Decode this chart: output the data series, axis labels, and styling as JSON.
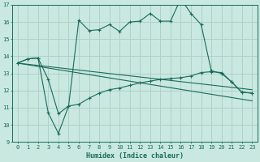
{
  "xlabel": "Humidex (Indice chaleur)",
  "xlim": [
    -0.5,
    23.5
  ],
  "ylim": [
    9,
    17
  ],
  "yticks": [
    9,
    10,
    11,
    12,
    13,
    14,
    15,
    16,
    17
  ],
  "xticks": [
    0,
    1,
    2,
    3,
    4,
    5,
    6,
    7,
    8,
    9,
    10,
    11,
    12,
    13,
    14,
    15,
    16,
    17,
    18,
    19,
    20,
    21,
    22,
    23
  ],
  "bg_color": "#c8e8e0",
  "grid_color": "#b0d0c8",
  "line_color": "#1a6b5a",
  "lines": [
    {
      "x": [
        0,
        1,
        2,
        3,
        4,
        5,
        6,
        7,
        8,
        9,
        10,
        11,
        12,
        13,
        14,
        15,
        16,
        17,
        18,
        19,
        20,
        21,
        22,
        23
      ],
      "y": [
        13.6,
        13.85,
        13.9,
        12.65,
        10.65,
        11.1,
        16.1,
        15.5,
        15.55,
        15.85,
        15.45,
        16.0,
        16.05,
        16.5,
        16.05,
        16.05,
        17.35,
        16.5,
        15.85,
        13.15,
        13.0,
        12.5,
        11.9,
        11.85
      ],
      "marker": true
    },
    {
      "x": [
        0,
        1,
        2,
        3,
        4,
        5,
        6,
        7,
        8,
        9,
        10,
        11,
        12,
        13,
        14,
        15,
        16,
        17,
        18,
        19,
        20,
        21,
        22,
        23
      ],
      "y": [
        13.6,
        13.85,
        13.9,
        10.7,
        9.5,
        11.1,
        11.2,
        11.55,
        11.85,
        12.05,
        12.15,
        12.3,
        12.45,
        12.55,
        12.65,
        12.7,
        12.75,
        12.85,
        13.05,
        13.1,
        13.05,
        12.5,
        11.9,
        11.85
      ],
      "marker": true
    },
    {
      "x": [
        0,
        23
      ],
      "y": [
        13.6,
        12.05
      ],
      "marker": false
    },
    {
      "x": [
        0,
        23
      ],
      "y": [
        13.6,
        11.4
      ],
      "marker": false
    }
  ]
}
